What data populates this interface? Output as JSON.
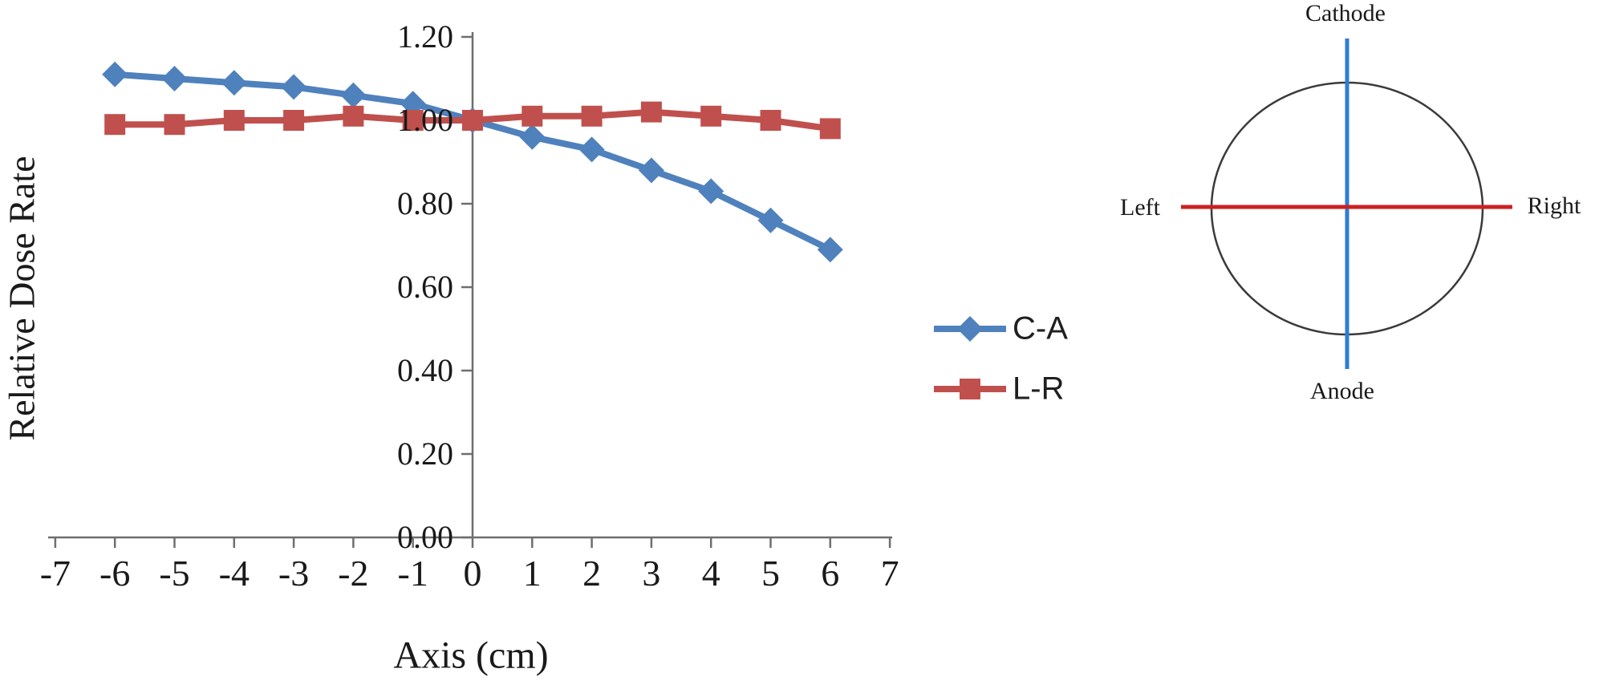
{
  "chart_data": {
    "type": "line",
    "title": "",
    "xlabel": "Axis (cm)",
    "ylabel": "Relative Dose Rate",
    "x": [
      -6,
      -5,
      -4,
      -3,
      -2,
      -1,
      0,
      1,
      2,
      3,
      4,
      5,
      6
    ],
    "series": [
      {
        "name": "C-A",
        "color": "#4F81BD",
        "marker": "diamond",
        "values": [
          1.11,
          1.1,
          1.09,
          1.08,
          1.06,
          1.04,
          1.0,
          0.96,
          0.93,
          0.88,
          0.83,
          0.76,
          0.69
        ]
      },
      {
        "name": "L-R",
        "color": "#C0504D",
        "marker": "square",
        "values": [
          0.99,
          0.99,
          1.0,
          1.0,
          1.01,
          1.0,
          1.0,
          1.01,
          1.01,
          1.02,
          1.01,
          1.0,
          0.98
        ]
      }
    ],
    "xticks": [
      "-7",
      "-6",
      "-5",
      "-4",
      "-3",
      "-2",
      "-1",
      "0",
      "1",
      "2",
      "3",
      "4",
      "5",
      "6",
      "7"
    ],
    "yticks": [
      "0.00",
      "0.20",
      "0.40",
      "0.60",
      "0.80",
      "1.00",
      "1.20"
    ],
    "xlim": [
      -7,
      7
    ],
    "ylim": [
      0.0,
      1.2
    ],
    "grid": false,
    "legend_position": "right-of-plot"
  },
  "legend": {
    "items": [
      {
        "label": "C-A"
      },
      {
        "label": "L-R"
      }
    ]
  },
  "diagram": {
    "labels": {
      "top": "Cathode",
      "bottom": "Anode",
      "left": "Left",
      "right": "Right"
    },
    "circle_color": "#3a3a3a",
    "vertical_line_color": "#2E7CD6",
    "horizontal_line_color": "#CC2222"
  },
  "colors": {
    "axis": "#6e6e6e",
    "text": "#1a1a1a"
  }
}
